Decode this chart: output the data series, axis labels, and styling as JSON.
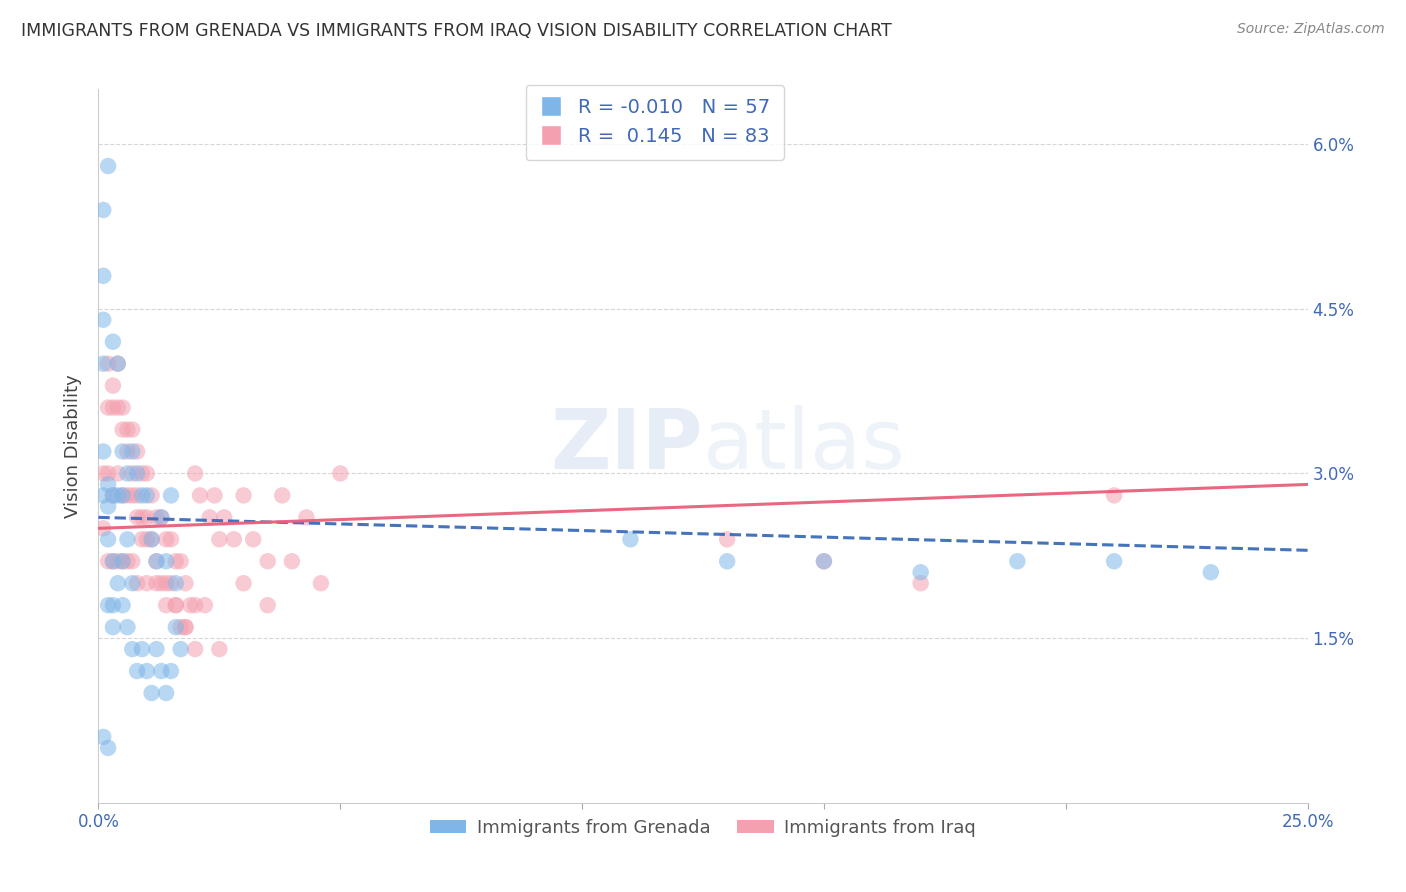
{
  "title": "IMMIGRANTS FROM GRENADA VS IMMIGRANTS FROM IRAQ VISION DISABILITY CORRELATION CHART",
  "source": "Source: ZipAtlas.com",
  "ylabel": "Vision Disability",
  "ytick_labels": [
    "1.5%",
    "3.0%",
    "4.5%",
    "6.0%"
  ],
  "ytick_values": [
    0.015,
    0.03,
    0.045,
    0.06
  ],
  "xlim": [
    0.0,
    0.25
  ],
  "ylim": [
    0.0,
    0.065
  ],
  "color_grenada": "#7EB6E8",
  "color_iraq": "#F4A0B0",
  "trendline_grenada_color": "#3B6CB8",
  "trendline_iraq_color": "#E8607A",
  "background_color": "#FFFFFF",
  "grenada_trendline_start_y": 0.026,
  "grenada_trendline_end_y": 0.023,
  "iraq_trendline_start_y": 0.025,
  "iraq_trendline_end_y": 0.029,
  "grenada_x": [
    0.001,
    0.001,
    0.001,
    0.001,
    0.001,
    0.002,
    0.002,
    0.002,
    0.002,
    0.003,
    0.003,
    0.003,
    0.004,
    0.004,
    0.005,
    0.005,
    0.005,
    0.006,
    0.006,
    0.007,
    0.007,
    0.008,
    0.009,
    0.01,
    0.011,
    0.012,
    0.013,
    0.014,
    0.015,
    0.016,
    0.001,
    0.001,
    0.002,
    0.002,
    0.003,
    0.003,
    0.004,
    0.005,
    0.006,
    0.007,
    0.008,
    0.009,
    0.01,
    0.011,
    0.012,
    0.013,
    0.014,
    0.015,
    0.016,
    0.017,
    0.11,
    0.13,
    0.15,
    0.17,
    0.19,
    0.21,
    0.23
  ],
  "grenada_y": [
    0.054,
    0.048,
    0.044,
    0.04,
    0.006,
    0.058,
    0.029,
    0.027,
    0.005,
    0.042,
    0.028,
    0.018,
    0.04,
    0.028,
    0.032,
    0.028,
    0.022,
    0.03,
    0.024,
    0.032,
    0.02,
    0.03,
    0.028,
    0.028,
    0.024,
    0.022,
    0.026,
    0.022,
    0.028,
    0.02,
    0.032,
    0.028,
    0.024,
    0.018,
    0.022,
    0.016,
    0.02,
    0.018,
    0.016,
    0.014,
    0.012,
    0.014,
    0.012,
    0.01,
    0.014,
    0.012,
    0.01,
    0.012,
    0.016,
    0.014,
    0.024,
    0.022,
    0.022,
    0.021,
    0.022,
    0.022,
    0.021
  ],
  "iraq_x": [
    0.001,
    0.001,
    0.002,
    0.002,
    0.002,
    0.003,
    0.003,
    0.003,
    0.004,
    0.004,
    0.004,
    0.005,
    0.005,
    0.005,
    0.006,
    0.006,
    0.006,
    0.007,
    0.007,
    0.007,
    0.008,
    0.008,
    0.008,
    0.009,
    0.009,
    0.01,
    0.01,
    0.01,
    0.011,
    0.011,
    0.012,
    0.012,
    0.013,
    0.013,
    0.014,
    0.014,
    0.015,
    0.015,
    0.016,
    0.016,
    0.017,
    0.017,
    0.018,
    0.018,
    0.019,
    0.02,
    0.02,
    0.021,
    0.022,
    0.023,
    0.024,
    0.025,
    0.026,
    0.028,
    0.03,
    0.032,
    0.035,
    0.038,
    0.04,
    0.043,
    0.046,
    0.05,
    0.002,
    0.003,
    0.004,
    0.005,
    0.006,
    0.007,
    0.008,
    0.009,
    0.01,
    0.012,
    0.014,
    0.016,
    0.018,
    0.02,
    0.025,
    0.03,
    0.035,
    0.13,
    0.15,
    0.17,
    0.21
  ],
  "iraq_y": [
    0.03,
    0.025,
    0.04,
    0.03,
    0.022,
    0.036,
    0.028,
    0.022,
    0.04,
    0.03,
    0.022,
    0.036,
    0.028,
    0.022,
    0.034,
    0.028,
    0.022,
    0.034,
    0.028,
    0.022,
    0.032,
    0.026,
    0.02,
    0.03,
    0.024,
    0.03,
    0.026,
    0.02,
    0.028,
    0.024,
    0.026,
    0.02,
    0.026,
    0.02,
    0.024,
    0.018,
    0.024,
    0.02,
    0.022,
    0.018,
    0.022,
    0.016,
    0.02,
    0.016,
    0.018,
    0.03,
    0.018,
    0.028,
    0.018,
    0.026,
    0.028,
    0.024,
    0.026,
    0.024,
    0.028,
    0.024,
    0.022,
    0.028,
    0.022,
    0.026,
    0.02,
    0.03,
    0.036,
    0.038,
    0.036,
    0.034,
    0.032,
    0.03,
    0.028,
    0.026,
    0.024,
    0.022,
    0.02,
    0.018,
    0.016,
    0.014,
    0.014,
    0.02,
    0.018,
    0.024,
    0.022,
    0.02,
    0.028
  ]
}
